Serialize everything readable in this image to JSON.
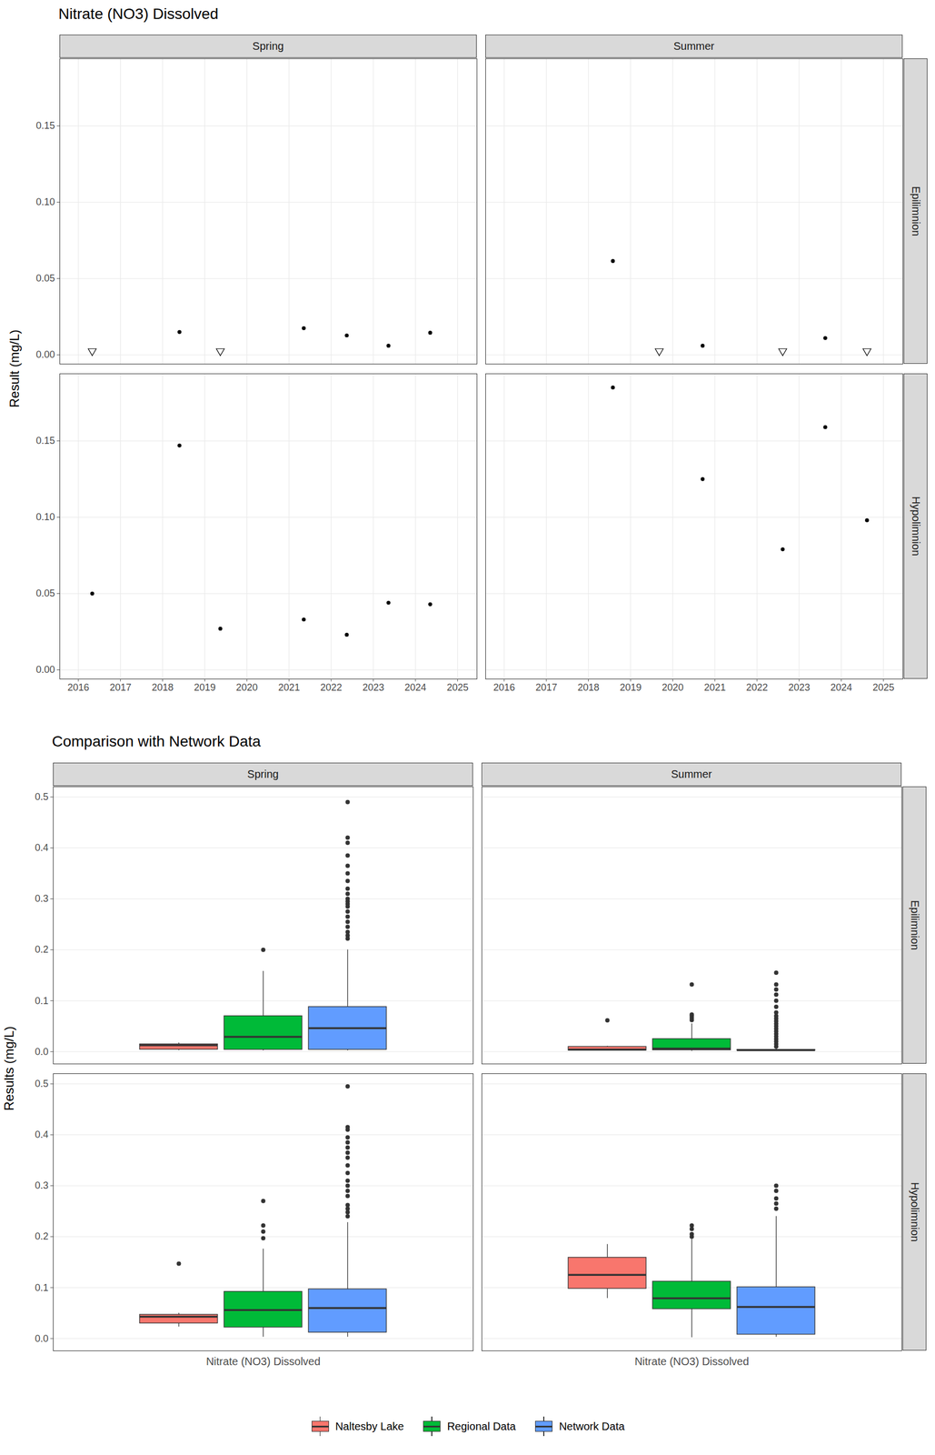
{
  "chart_data": [
    {
      "type": "scatter",
      "title": "Nitrate (NO3) Dissolved",
      "y_label": "Result (mg/L)",
      "facet_columns": [
        "Spring",
        "Summer"
      ],
      "facet_rows": [
        "Epilimnion",
        "Hypolimnion"
      ],
      "xlim": [
        2015.56,
        2025.46
      ],
      "xticks": [
        2016,
        2017,
        2018,
        2019,
        2020,
        2021,
        2022,
        2023,
        2024,
        2025
      ],
      "ylim": [
        -0.006,
        0.194
      ],
      "yticks": [
        {
          "value": 0,
          "label": "0.00"
        },
        0.05,
        {
          "value": 0.1,
          "label": "0.10"
        },
        0.15
      ],
      "grid": true,
      "panels": [
        {
          "column": "Spring",
          "row": "Epilimnion",
          "series": [
            {
              "marker": "circle",
              "color": "#000000",
              "x": [
                2018.4,
                2021.35,
                2022.37,
                2023.36,
                2024.35
              ],
              "values": [
                0.015,
                0.0175,
                0.0127,
                0.006,
                0.0145
              ]
            },
            {
              "marker": "triangle-down",
              "color": "#000000",
              "x": [
                2016.33,
                2019.37
              ],
              "values": [
                0.0025,
                0.0025
              ]
            }
          ]
        },
        {
          "column": "Summer",
          "row": "Epilimnion",
          "series": [
            {
              "marker": "circle",
              "color": "#000000",
              "x": [
                2018.58,
                2020.71,
                2023.62
              ],
              "values": [
                0.0615,
                0.006,
                0.011
              ]
            },
            {
              "marker": "triangle-down",
              "color": "#000000",
              "x": [
                2019.68,
                2022.61,
                2024.61
              ],
              "values": [
                0.0025,
                0.0025,
                0.0025
              ]
            }
          ]
        },
        {
          "column": "Spring",
          "row": "Hypolimnion",
          "series": [
            {
              "marker": "circle",
              "color": "#000000",
              "x": [
                2016.33,
                2018.4,
                2019.37,
                2021.35,
                2022.37,
                2023.36,
                2024.35
              ],
              "values": [
                0.05,
                0.147,
                0.027,
                0.033,
                0.023,
                0.044,
                0.043
              ]
            }
          ]
        },
        {
          "column": "Summer",
          "row": "Hypolimnion",
          "series": [
            {
              "marker": "circle",
              "color": "#000000",
              "x": [
                2018.58,
                2020.71,
                2022.61,
                2023.62,
                2024.61
              ],
              "values": [
                0.185,
                0.125,
                0.079,
                0.159,
                0.098
              ]
            }
          ]
        }
      ]
    },
    {
      "type": "box",
      "title": "Comparison with Network Data",
      "y_label": "Results (mg/L)",
      "facet_columns": [
        "Spring",
        "Summer"
      ],
      "facet_rows": [
        "Epilimnion",
        "Hypolimnion"
      ],
      "categories": [
        "Nitrate (NO3) Dissolved"
      ],
      "series": [
        {
          "name": "Naltesby Lake",
          "color": "#F8766D"
        },
        {
          "name": "Regional Data",
          "color": "#00BA38"
        },
        {
          "name": "Network Data",
          "color": "#619CFF"
        }
      ],
      "ylim": [
        -0.024,
        0.52
      ],
      "yticks": [
        {
          "value": 0,
          "label": "0.0"
        },
        0.1,
        0.2,
        0.3,
        0.4,
        0.5
      ],
      "grid": true,
      "legend": "bottom",
      "panels": [
        {
          "column": "Spring",
          "row": "Epilimnion",
          "boxes": [
            {
              "whisker_low": 0.0025,
              "q1": 0.00425,
              "median": 0.0127,
              "q3": 0.01475,
              "whisker_high": 0.0175,
              "outliers": []
            },
            {
              "whisker_low": 0.002,
              "q1": 0.004,
              "median": 0.029,
              "q3": 0.07,
              "whisker_high": 0.158,
              "outliers": [
                0.2
              ]
            },
            {
              "whisker_low": 0.002,
              "q1": 0.004,
              "median": 0.046,
              "q3": 0.088,
              "whisker_high": 0.2,
              "outliers": [
                0.222,
                0.228,
                0.235,
                0.245,
                0.255,
                0.265,
                0.275,
                0.285,
                0.29,
                0.295,
                0.3,
                0.31,
                0.32,
                0.335,
                0.35,
                0.365,
                0.385,
                0.41,
                0.42,
                0.49
              ]
            }
          ]
        },
        {
          "column": "Summer",
          "row": "Epilimnion",
          "boxes": [
            {
              "whisker_low": 0.0025,
              "q1": 0.0025,
              "median": 0.00425,
              "q3": 0.00975,
              "whisker_high": 0.011,
              "outliers": [
                0.0615
              ]
            },
            {
              "whisker_low": 0.001,
              "q1": 0.003,
              "median": 0.006,
              "q3": 0.025,
              "whisker_high": 0.055,
              "outliers": [
                0.062,
                0.066,
                0.07,
                0.073,
                0.132
              ]
            },
            {
              "whisker_low": 0.001,
              "q1": 0.002,
              "median": 0.003,
              "q3": 0.004,
              "whisker_high": 0.007,
              "outliers": [
                0.01,
                0.015,
                0.02,
                0.025,
                0.03,
                0.035,
                0.04,
                0.045,
                0.05,
                0.055,
                0.06,
                0.065,
                0.07,
                0.077,
                0.088,
                0.1,
                0.112,
                0.122,
                0.132,
                0.155
              ]
            }
          ]
        },
        {
          "column": "Spring",
          "row": "Hypolimnion",
          "boxes": [
            {
              "whisker_low": 0.023,
              "q1": 0.03,
              "median": 0.043,
              "q3": 0.047,
              "whisker_high": 0.05,
              "outliers": [
                0.147
              ]
            },
            {
              "whisker_low": 0.003,
              "q1": 0.022,
              "median": 0.056,
              "q3": 0.092,
              "whisker_high": 0.176,
              "outliers": [
                0.197,
                0.21,
                0.222,
                0.27
              ]
            },
            {
              "whisker_low": 0.003,
              "q1": 0.012,
              "median": 0.06,
              "q3": 0.097,
              "whisker_high": 0.228,
              "outliers": [
                0.24,
                0.248,
                0.255,
                0.262,
                0.28,
                0.29,
                0.3,
                0.31,
                0.325,
                0.34,
                0.355,
                0.365,
                0.375,
                0.385,
                0.395,
                0.41,
                0.415,
                0.495
              ]
            }
          ]
        },
        {
          "column": "Summer",
          "row": "Hypolimnion",
          "boxes": [
            {
              "whisker_low": 0.079,
              "q1": 0.098,
              "median": 0.125,
              "q3": 0.159,
              "whisker_high": 0.185,
              "outliers": []
            },
            {
              "whisker_low": 0.002,
              "q1": 0.058,
              "median": 0.079,
              "q3": 0.112,
              "whisker_high": 0.195,
              "outliers": [
                0.2,
                0.205,
                0.215,
                0.222
              ]
            },
            {
              "whisker_low": 0.003,
              "q1": 0.008,
              "median": 0.062,
              "q3": 0.101,
              "whisker_high": 0.24,
              "outliers": [
                0.255,
                0.265,
                0.275,
                0.29,
                0.3
              ]
            }
          ]
        }
      ]
    }
  ]
}
